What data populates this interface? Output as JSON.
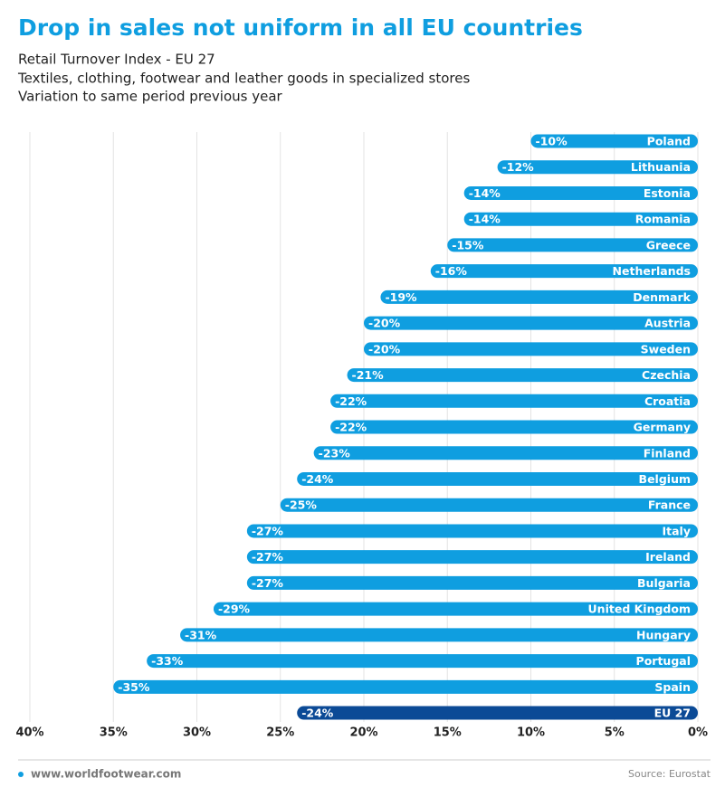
{
  "chart_data": {
    "type": "bar",
    "title": "Drop in sales not uniform in all EU countries",
    "subtitle": [
      "Retail Turnover Index - EU 27",
      "Textiles, clothing, footwear and leather goods in specialized stores",
      "Variation to same period previous year"
    ],
    "categories": [
      "Poland",
      "Lithuania",
      "Estonia",
      "Romania",
      "Greece",
      "Netherlands",
      "Denmark",
      "Austria",
      "Sweden",
      "Czechia",
      "Croatia",
      "Germany",
      "Finland",
      "Belgium",
      "France",
      "Italy",
      "Ireland",
      "Bulgaria",
      "United Kingdom",
      "Hungary",
      "Portugal",
      "Spain",
      "EU 27"
    ],
    "values": [
      -10,
      -12,
      -14,
      -14,
      -15,
      -16,
      -19,
      -20,
      -20,
      -21,
      -22,
      -22,
      -23,
      -24,
      -25,
      -27,
      -27,
      -27,
      -29,
      -31,
      -33,
      -35,
      -24
    ],
    "value_labels": [
      "-10%",
      "-12%",
      "-14%",
      "-14%",
      "-15%",
      "-16%",
      "-19%",
      "-20%",
      "-20%",
      "-21%",
      "-22%",
      "-22%",
      "-23%",
      "-24%",
      "-25%",
      "-27%",
      "-27%",
      "-27%",
      "-29%",
      "-31%",
      "-33%",
      "-35%",
      "-24%"
    ],
    "colors": [
      "#0f9ee0",
      "#0f9ee0",
      "#0f9ee0",
      "#0f9ee0",
      "#0f9ee0",
      "#0f9ee0",
      "#0f9ee0",
      "#0f9ee0",
      "#0f9ee0",
      "#0f9ee0",
      "#0f9ee0",
      "#0f9ee0",
      "#0f9ee0",
      "#0f9ee0",
      "#0f9ee0",
      "#0f9ee0",
      "#0f9ee0",
      "#0f9ee0",
      "#0f9ee0",
      "#0f9ee0",
      "#0f9ee0",
      "#0f9ee0",
      "#0b4a96"
    ],
    "xlim": [
      -40,
      0
    ],
    "xticks": [
      {
        "value": -40,
        "label": "40%"
      },
      {
        "value": -35,
        "label": "35%"
      },
      {
        "value": -30,
        "label": "30%"
      },
      {
        "value": -25,
        "label": "25%"
      },
      {
        "value": -20,
        "label": "20%"
      },
      {
        "value": -15,
        "label": "15%"
      },
      {
        "value": -10,
        "label": "10%"
      },
      {
        "value": -5,
        "label": "5%"
      },
      {
        "value": 0,
        "label": "0%"
      }
    ],
    "grid": true,
    "footer": "www.worldfootwear.com",
    "source": "Source: Eurostat"
  }
}
